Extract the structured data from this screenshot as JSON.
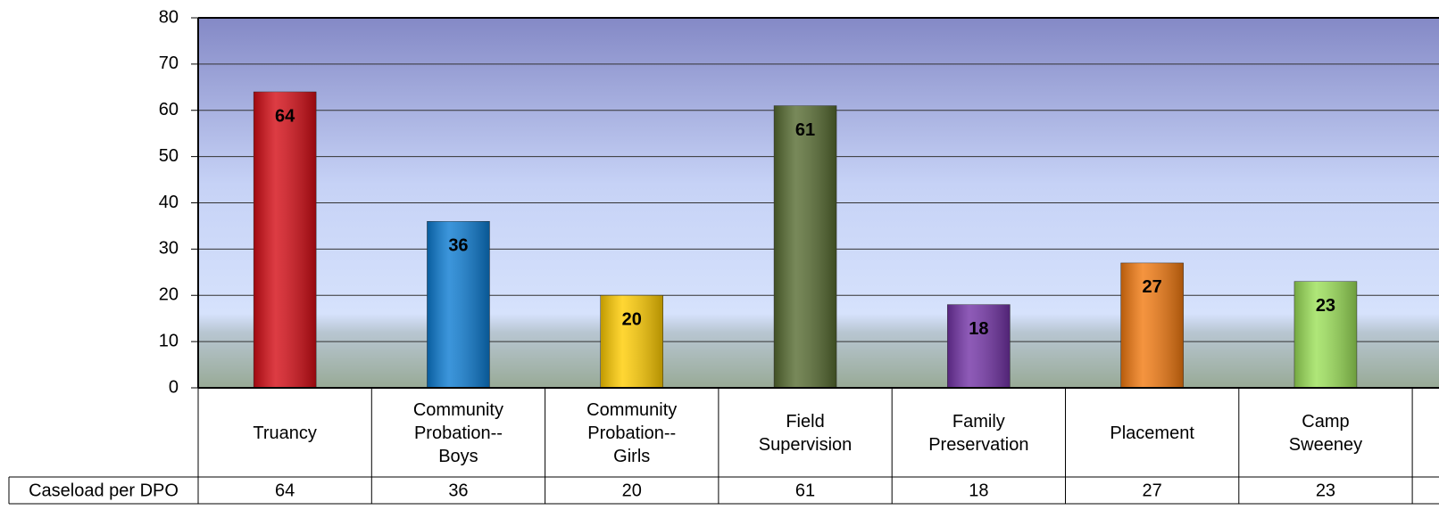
{
  "chart_data": {
    "type": "bar",
    "categories": [
      "Truancy",
      "Community Probation--Boys",
      "Community Probation--Girls",
      "Field Supervision",
      "Family Preservation",
      "Placement",
      "Camp Sweeney"
    ],
    "values": [
      64,
      36,
      20,
      61,
      18,
      27,
      23
    ],
    "colors": [
      "#d40b14",
      "#0b7bd2",
      "#ffcc00",
      "#566b30",
      "#7232a6",
      "#f2790f",
      "#9be057"
    ],
    "series_name": "Caseload per DPO",
    "ylim": [
      0,
      80
    ],
    "yticks": [
      0,
      10,
      20,
      30,
      40,
      50,
      60,
      70,
      80
    ],
    "grid": true
  }
}
